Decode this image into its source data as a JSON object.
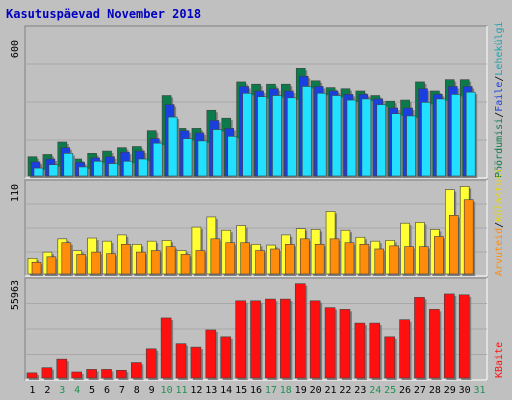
{
  "title": "Kasutuspäevad November 2018",
  "colors": {
    "background": "#c0c0c0",
    "plot_bg": "#c0c0c0",
    "title": "#0000c0",
    "pages_dark": "#0d7a4b",
    "files_blue": "#1a3fe0",
    "requests_cyan": "#22e0ff",
    "visits_yellow": "#ffff33",
    "visits_orange": "#ff8c0a",
    "kbytes_red": "#ff1010",
    "weekend_green": "#1f8f4f"
  },
  "chart_data": [
    {
      "type": "bar",
      "name": "hits",
      "ylabel_max": "600",
      "ylim": [
        0,
        600
      ],
      "side_labels": [
        "Pöördumisi",
        "/",
        "Faile",
        "/",
        "Lehekülgi"
      ],
      "categories": [
        "1",
        "2",
        "3",
        "4",
        "5",
        "6",
        "7",
        "8",
        "9",
        "10",
        "11",
        "12",
        "13",
        "14",
        "15",
        "16",
        "17",
        "18",
        "19",
        "20",
        "21",
        "22",
        "23",
        "24",
        "25",
        "26",
        "27",
        "28",
        "29",
        "30",
        "31"
      ],
      "series": [
        {
          "name": "Pöördumisi",
          "values": [
            85,
            95,
            150,
            75,
            100,
            110,
            125,
            130,
            200,
            355,
            210,
            210,
            290,
            255,
            415,
            405,
            405,
            405,
            475,
            420,
            390,
            385,
            375,
            355,
            330,
            335,
            415,
            375,
            425,
            425,
            0
          ]
        },
        {
          "name": "Faile",
          "values": [
            62,
            75,
            125,
            60,
            80,
            85,
            105,
            110,
            165,
            315,
            200,
            190,
            245,
            210,
            395,
            375,
            385,
            375,
            440,
            395,
            375,
            360,
            360,
            340,
            300,
            300,
            385,
            360,
            395,
            395,
            0
          ]
        },
        {
          "name": "Lehekülgi",
          "values": [
            35,
            50,
            100,
            40,
            65,
            55,
            65,
            75,
            145,
            260,
            165,
            155,
            205,
            175,
            365,
            350,
            355,
            345,
            395,
            365,
            355,
            335,
            340,
            315,
            275,
            265,
            325,
            340,
            360,
            370,
            0
          ]
        }
      ]
    },
    {
      "type": "bar",
      "name": "visits",
      "ylabel_max": "110",
      "ylim": [
        0,
        110
      ],
      "side_labels": [
        "Külastusi",
        "/",
        "Arvuteid"
      ],
      "series": [
        {
          "name": "Külastusi",
          "values": [
            20,
            28,
            45,
            30,
            46,
            42,
            50,
            38,
            42,
            43,
            30,
            60,
            73,
            56,
            62,
            38,
            37,
            50,
            58,
            57,
            80,
            56,
            47,
            42,
            43,
            65,
            66,
            57,
            108,
            112,
            0
          ]
        },
        {
          "name": "Arvuteid",
          "values": [
            15,
            22,
            40,
            25,
            28,
            26,
            38,
            28,
            30,
            35,
            25,
            30,
            45,
            40,
            40,
            30,
            32,
            38,
            45,
            38,
            45,
            40,
            38,
            32,
            36,
            35,
            35,
            48,
            75,
            95,
            0
          ]
        }
      ]
    },
    {
      "type": "bar",
      "name": "kbytes",
      "ylabel_max": "55963",
      "ylim": [
        0,
        55963
      ],
      "side_labels": [
        "KBaite"
      ],
      "series": [
        {
          "name": "KBaite",
          "values": [
            3000,
            6000,
            11000,
            3500,
            5000,
            5000,
            4500,
            9000,
            17000,
            35000,
            20000,
            18000,
            28000,
            24000,
            45000,
            45000,
            46000,
            46000,
            55000,
            45000,
            41000,
            40000,
            32000,
            32000,
            24000,
            34000,
            47000,
            40000,
            49000,
            48500,
            0
          ]
        }
      ]
    }
  ]
}
